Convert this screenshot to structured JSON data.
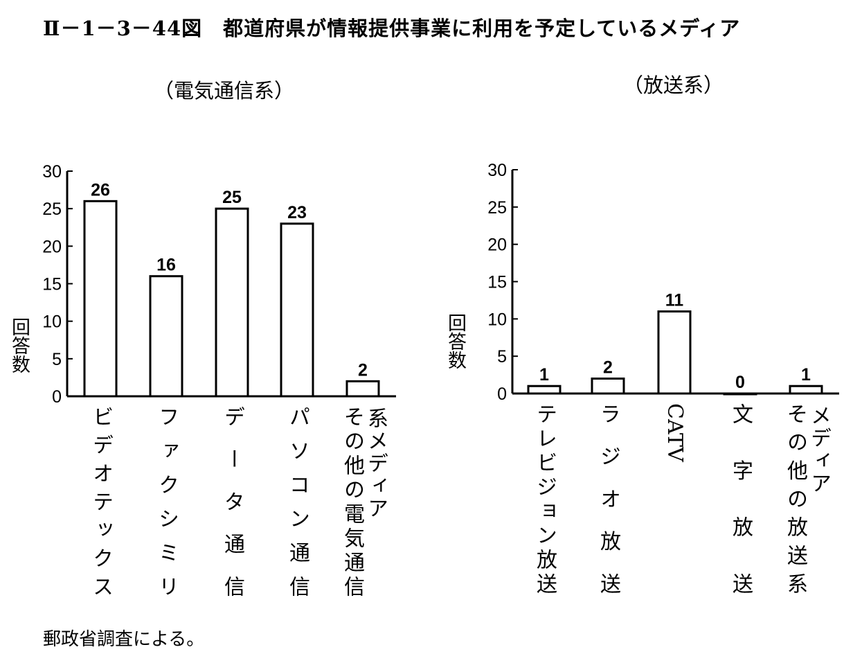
{
  "title": "Ⅱ－1－3－44図　都道府県が情報提供事業に利用を予定しているメディア",
  "footer": "郵政省調査による。",
  "chart_data": [
    {
      "type": "bar",
      "subtitle": "（電気通信系）",
      "ylabel": "回答数",
      "ylim": [
        0,
        30
      ],
      "yticks": [
        0,
        5,
        10,
        15,
        20,
        25,
        30
      ],
      "categories": [
        "ビデオテックス",
        "ファクシミリ",
        "データ通信",
        "パソコン通信",
        "その他の電気通信系メディア"
      ],
      "label_cols": [
        [
          "ビデオテックス"
        ],
        [
          "ファクシミリ"
        ],
        [
          "データ通信"
        ],
        [
          "パソコン通信"
        ],
        [
          "その他の電気通信",
          "系メディア"
        ]
      ],
      "values": [
        26,
        16,
        25,
        23,
        2
      ]
    },
    {
      "type": "bar",
      "subtitle": "（放送系）",
      "ylabel": "回答数",
      "ylim": [
        0,
        30
      ],
      "yticks": [
        0,
        5,
        10,
        15,
        20,
        25,
        30
      ],
      "categories": [
        "テレビジョン放送",
        "ラジオ放送",
        "CATV",
        "文字放送",
        "その他の放送系メディア"
      ],
      "label_cols": [
        [
          "テレビジョン放送"
        ],
        [
          "ラジオ放送"
        ],
        [
          "CATV"
        ],
        [
          "文字放送"
        ],
        [
          "その他の放送系",
          "メディア"
        ]
      ],
      "values": [
        1,
        2,
        11,
        0,
        1
      ]
    }
  ]
}
